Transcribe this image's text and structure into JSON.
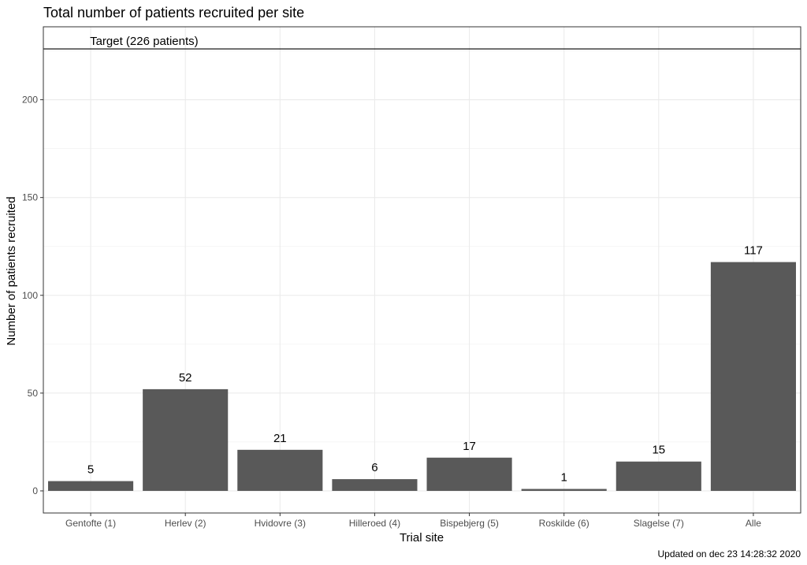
{
  "chart_data": {
    "type": "bar",
    "title": "Total number of patients recruited per site",
    "xlabel": "Trial site",
    "ylabel": "Number of patients recruited",
    "categories": [
      "Gentofte (1)",
      "Herlev (2)",
      "Hvidovre (3)",
      "Hilleroed (4)",
      "Bispebjerg (5)",
      "Roskilde (6)",
      "Slagelse (7)",
      "Alle"
    ],
    "values": [
      5,
      52,
      21,
      6,
      17,
      1,
      15,
      117
    ],
    "data_labels": [
      "5",
      "52",
      "21",
      "6",
      "17",
      "1",
      "15",
      "117"
    ],
    "yticks": [
      0,
      50,
      100,
      150,
      200
    ],
    "ytick_labels": [
      "0",
      "50",
      "100",
      "150",
      "200"
    ],
    "ylim": [
      -11.3,
      237.3
    ],
    "grid": true,
    "bar_color": "#595959",
    "reference_line": {
      "value": 226,
      "label": "Target (226 patients)"
    },
    "caption": "Updated on dec 23 14:28:32 2020"
  }
}
